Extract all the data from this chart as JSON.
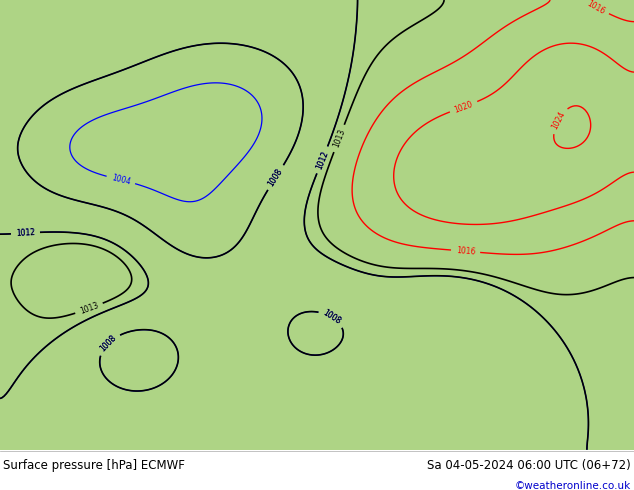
{
  "title_left": "Surface pressure [hPa] ECMWF",
  "title_right": "Sa 04-05-2024 06:00 UTC (06+72)",
  "copyright": "©weatheronline.co.uk",
  "land_color": "#aed485",
  "sea_color": "#d8eef5",
  "ocean_color": "#d8eef5",
  "border_color": "#888888",
  "coast_color": "#555555",
  "figsize": [
    6.34,
    4.9
  ],
  "dpi": 100,
  "title_fontsize": 8.5,
  "copyright_color": "#0000cc",
  "copyright_fontsize": 7.5,
  "extent": [
    22,
    115,
    0,
    57
  ],
  "isobar_black_lw": 1.2,
  "isobar_blue_lw": 0.9,
  "isobar_red_lw": 1.0,
  "label_fontsize": 5.5
}
